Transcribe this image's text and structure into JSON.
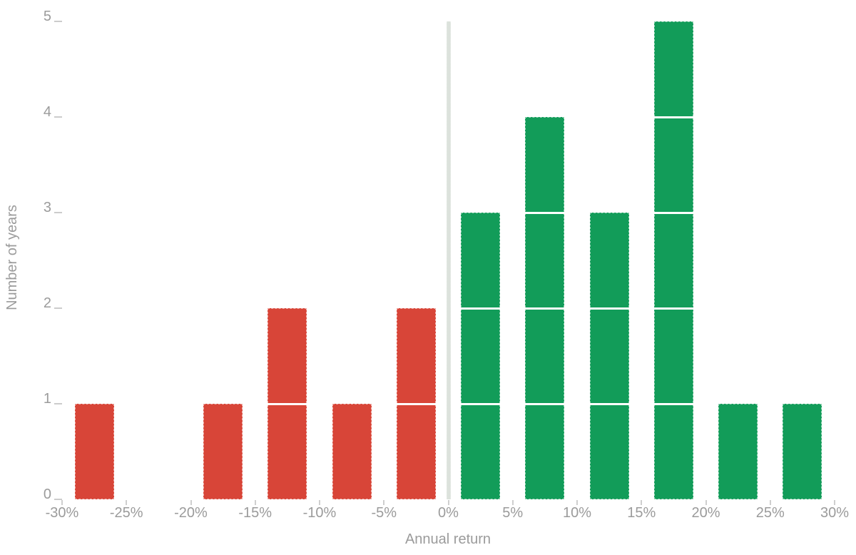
{
  "chart_data": {
    "type": "bar",
    "subtype": "histogram",
    "title": "",
    "xlabel": "Annual return",
    "ylabel": "Number of years",
    "xlim": [
      -30,
      30
    ],
    "ylim": [
      0,
      5
    ],
    "grid": false,
    "legend": null,
    "zero_line_at": 0,
    "bin_width_pct": 5,
    "x_ticks": [
      {
        "value": -30,
        "label": "-30%"
      },
      {
        "value": -25,
        "label": "-25%"
      },
      {
        "value": -20,
        "label": "-20%"
      },
      {
        "value": -15,
        "label": "-15%"
      },
      {
        "value": -10,
        "label": "-10%"
      },
      {
        "value": -5,
        "label": "-5%"
      },
      {
        "value": 0,
        "label": "0%"
      },
      {
        "value": 5,
        "label": "5%"
      },
      {
        "value": 10,
        "label": "10%"
      },
      {
        "value": 15,
        "label": "15%"
      },
      {
        "value": 20,
        "label": "20%"
      },
      {
        "value": 25,
        "label": "25%"
      },
      {
        "value": 30,
        "label": "30%"
      }
    ],
    "y_ticks": [
      {
        "value": 0,
        "label": "0"
      },
      {
        "value": 1,
        "label": "1"
      },
      {
        "value": 2,
        "label": "2"
      },
      {
        "value": 3,
        "label": "3"
      },
      {
        "value": 4,
        "label": "4"
      },
      {
        "value": 5,
        "label": "5"
      }
    ],
    "bins": [
      {
        "start": -30,
        "end": -25,
        "count": 1
      },
      {
        "start": -25,
        "end": -20,
        "count": 0
      },
      {
        "start": -20,
        "end": -15,
        "count": 1
      },
      {
        "start": -15,
        "end": -10,
        "count": 2
      },
      {
        "start": -10,
        "end": -5,
        "count": 1
      },
      {
        "start": -5,
        "end": 0,
        "count": 2
      },
      {
        "start": 0,
        "end": 5,
        "count": 3
      },
      {
        "start": 5,
        "end": 10,
        "count": 4
      },
      {
        "start": 10,
        "end": 15,
        "count": 3
      },
      {
        "start": 15,
        "end": 20,
        "count": 5
      },
      {
        "start": 20,
        "end": 25,
        "count": 1
      },
      {
        "start": 25,
        "end": 30,
        "count": 1
      }
    ],
    "colors": {
      "negative_bar": "#d84538",
      "positive_bar": "#129c59",
      "axis_text": "#9b9b9b",
      "tick_mark": "#cfcfcf",
      "zero_line": "#dce2dc",
      "segment_divider": "#ffffff",
      "background": "#ffffff"
    }
  }
}
